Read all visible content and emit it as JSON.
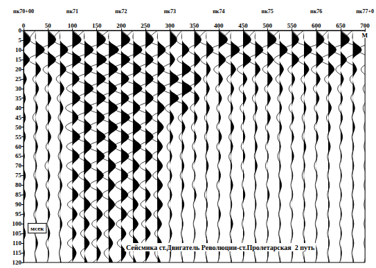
{
  "chart_data": {
    "type": "seismic",
    "title": "Сейсмика ст.Двигатель Революции-ст.Пролетарская  2 путь",
    "xlabel": "М",
    "ylabel": "мсек",
    "xlim": [
      0,
      700
    ],
    "xticks": [
      0,
      50,
      100,
      150,
      200,
      250,
      300,
      350,
      400,
      450,
      500,
      550,
      600,
      650,
      700
    ],
    "x2ticks": [
      {
        "value": 0,
        "label": "пк70+00"
      },
      {
        "value": 100,
        "label": "пк71"
      },
      {
        "value": 200,
        "label": "пк72"
      },
      {
        "value": 300,
        "label": "пк73"
      },
      {
        "value": 400,
        "label": "пк74"
      },
      {
        "value": 500,
        "label": "пк75"
      },
      {
        "value": 600,
        "label": "пк76"
      },
      {
        "value": 700,
        "label": "пк77+0"
      }
    ],
    "ylim": [
      0,
      120
    ],
    "yticks": [
      0,
      5,
      10,
      15,
      20,
      25,
      30,
      35,
      40,
      45,
      50,
      55,
      60,
      65,
      70,
      75,
      80,
      85,
      90,
      95,
      100,
      105,
      110,
      115,
      120
    ],
    "grid": false,
    "color": "#000000",
    "traces": {
      "x": [
        0,
        25,
        50,
        75,
        100,
        125,
        150,
        175,
        200,
        225,
        250,
        275,
        300,
        325,
        350,
        375,
        400,
        425,
        450,
        475,
        500,
        525,
        550,
        575,
        600,
        625,
        650,
        675,
        700
      ],
      "t": [
        0,
        5,
        10,
        15,
        20,
        25,
        30,
        35,
        40,
        45,
        50,
        55,
        60,
        65,
        70,
        75,
        80,
        85,
        90,
        95,
        100,
        105,
        110,
        115,
        120
      ],
      "amplitudes": [
        [
          0,
          0.7,
          -0.8,
          0.6,
          -0.4,
          0.3,
          -0.3,
          0.2,
          -0.2,
          0.2,
          -0.1,
          0.2,
          -0.2,
          0.1,
          -0.2,
          0.2,
          -0.1,
          0.2,
          -0.2,
          0.1,
          -0.1,
          0.2,
          -0.1,
          0.1,
          -0.1
        ],
        [
          0,
          -0.6,
          0.9,
          -0.7,
          0.5,
          -0.3,
          0.3,
          -0.2,
          0.2,
          -0.3,
          0.2,
          -0.2,
          0.2,
          -0.2,
          0.1,
          -0.2,
          0.2,
          -0.1,
          0.2,
          -0.2,
          0.1,
          -0.1,
          0.2,
          -0.1,
          0.1
        ],
        [
          0,
          0.8,
          -0.7,
          0.8,
          -0.5,
          0.4,
          -0.3,
          0.3,
          -0.2,
          0.3,
          -0.2,
          0.3,
          -0.2,
          0.2,
          -0.3,
          0.2,
          -0.2,
          0.2,
          -0.2,
          0.2,
          -0.1,
          0.2,
          -0.2,
          0.1,
          -0.1
        ],
        [
          0,
          -0.7,
          0.8,
          -0.6,
          0.6,
          -0.4,
          0.4,
          -0.3,
          0.3,
          -0.2,
          0.3,
          -0.2,
          0.2,
          -0.2,
          0.2,
          -0.2,
          0.2,
          -0.2,
          0.1,
          -0.2,
          0.2,
          -0.1,
          0.1,
          -0.1,
          0.1
        ],
        [
          0,
          0.9,
          -0.8,
          0.9,
          -0.8,
          0.7,
          -0.6,
          0.8,
          -0.7,
          0.6,
          -0.7,
          0.8,
          -0.6,
          0.7,
          -0.6,
          0.6,
          -0.5,
          0.6,
          -0.5,
          0.5,
          -0.5,
          0.4,
          -0.5,
          0.4,
          -0.4
        ],
        [
          0,
          -0.8,
          0.9,
          -0.9,
          0.8,
          -0.8,
          0.9,
          -0.7,
          0.8,
          -0.8,
          0.7,
          -0.8,
          0.7,
          -0.6,
          0.7,
          -0.6,
          0.6,
          -0.5,
          0.6,
          -0.5,
          0.5,
          -0.4,
          0.5,
          -0.4,
          0.3
        ],
        [
          0,
          0.9,
          -0.9,
          1.0,
          -0.9,
          0.9,
          -0.8,
          0.9,
          -0.9,
          0.8,
          -0.8,
          0.9,
          -0.8,
          0.8,
          -0.7,
          0.7,
          -0.7,
          0.6,
          -0.6,
          0.6,
          -0.5,
          0.5,
          -0.5,
          0.4,
          -0.4
        ],
        [
          0,
          -0.9,
          1.0,
          -0.9,
          0.9,
          -0.9,
          0.8,
          -0.9,
          0.9,
          -0.8,
          0.9,
          -0.7,
          0.8,
          -0.8,
          0.7,
          -0.7,
          0.6,
          -0.7,
          0.6,
          -0.5,
          0.6,
          -0.5,
          0.4,
          -0.5,
          0.4
        ],
        [
          0,
          0.9,
          -0.8,
          0.9,
          -0.9,
          0.8,
          -0.9,
          0.8,
          -0.8,
          0.9,
          -0.8,
          0.8,
          -0.7,
          0.8,
          -0.7,
          0.7,
          -0.6,
          0.7,
          -0.6,
          0.6,
          -0.5,
          0.5,
          -0.4,
          0.5,
          -0.4
        ],
        [
          0,
          -0.8,
          0.9,
          -0.8,
          0.8,
          -0.9,
          0.9,
          -0.8,
          0.7,
          -0.8,
          0.8,
          -0.7,
          0.8,
          -0.7,
          0.6,
          -0.7,
          0.6,
          -0.6,
          0.5,
          -0.6,
          0.5,
          -0.4,
          0.5,
          -0.4,
          0.3
        ],
        [
          0,
          0.8,
          -0.9,
          0.8,
          -0.8,
          0.8,
          -0.7,
          0.8,
          -0.8,
          0.7,
          -0.7,
          0.8,
          -0.6,
          0.7,
          -0.6,
          0.6,
          -0.6,
          0.5,
          -0.5,
          0.6,
          -0.4,
          0.5,
          -0.4,
          0.4,
          -0.3
        ],
        [
          0,
          -0.9,
          0.8,
          -0.8,
          0.7,
          -0.7,
          0.8,
          -0.6,
          0.7,
          -0.6,
          0.6,
          -0.7,
          0.5,
          -0.6,
          0.5,
          -0.5,
          0.5,
          -0.4,
          0.5,
          -0.4,
          0.4,
          -0.3,
          0.4,
          -0.3,
          0.3
        ],
        [
          0,
          0.7,
          -0.6,
          0.5,
          -0.8,
          0.9,
          -0.8,
          0.9,
          -0.5,
          0.4,
          -0.3,
          0.3,
          -0.3,
          0.2,
          -0.3,
          0.2,
          -0.2,
          0.2,
          -0.2,
          0.2,
          -0.1,
          0.2,
          -0.1,
          0.1,
          -0.1
        ],
        [
          0,
          -0.6,
          0.7,
          -0.5,
          0.9,
          -0.9,
          1.0,
          -0.8,
          0.6,
          -0.4,
          0.3,
          -0.3,
          0.2,
          -0.2,
          0.2,
          -0.2,
          0.2,
          -0.1,
          0.2,
          -0.1,
          0.1,
          -0.1,
          0.1,
          -0.1,
          0.1
        ],
        [
          0,
          0.7,
          -0.6,
          0.6,
          -0.5,
          0.7,
          -0.6,
          0.5,
          -0.4,
          0.3,
          -0.3,
          0.2,
          -0.2,
          0.2,
          -0.2,
          0.1,
          -0.2,
          0.2,
          -0.1,
          0.1,
          -0.1,
          0.1,
          -0.1,
          0.1,
          -0.1
        ],
        [
          0,
          -0.8,
          0.7,
          -0.6,
          0.4,
          -0.3,
          0.3,
          -0.2,
          0.3,
          -0.2,
          0.2,
          -0.2,
          0.2,
          -0.1,
          0.2,
          -0.1,
          0.1,
          -0.2,
          0.1,
          -0.1,
          0.1,
          -0.1,
          0.1,
          -0.1,
          0.1
        ],
        [
          0,
          0.9,
          -0.8,
          0.7,
          -0.5,
          0.4,
          -0.3,
          0.3,
          -0.2,
          0.2,
          -0.2,
          0.3,
          -0.2,
          0.2,
          -0.1,
          0.2,
          -0.2,
          0.1,
          -0.1,
          0.2,
          -0.1,
          0.1,
          -0.1,
          0.1,
          -0.1
        ],
        [
          0,
          -0.8,
          0.9,
          -0.6,
          0.5,
          -0.4,
          0.3,
          -0.3,
          0.2,
          -0.2,
          0.3,
          -0.2,
          0.2,
          -0.2,
          0.1,
          -0.1,
          0.2,
          -0.1,
          0.1,
          -0.1,
          0.2,
          -0.1,
          0.1,
          -0.1,
          0.1
        ],
        [
          0,
          0.8,
          -0.7,
          0.8,
          -0.6,
          0.4,
          -0.4,
          0.3,
          -0.3,
          0.2,
          -0.2,
          0.2,
          -0.2,
          0.2,
          -0.2,
          0.1,
          -0.1,
          0.2,
          -0.1,
          0.1,
          -0.1,
          0.1,
          -0.1,
          0.1,
          -0.1
        ],
        [
          0,
          -0.7,
          0.8,
          -0.7,
          0.5,
          -0.3,
          0.3,
          -0.3,
          0.2,
          -0.2,
          0.2,
          -0.1,
          0.2,
          -0.1,
          0.2,
          -0.1,
          0.1,
          -0.1,
          0.1,
          -0.1,
          0.1,
          -0.1,
          0.1,
          -0.1,
          0.1
        ],
        [
          0,
          0.9,
          -0.7,
          0.6,
          -0.5,
          0.5,
          -0.3,
          0.3,
          -0.2,
          0.3,
          -0.2,
          0.2,
          -0.2,
          0.1,
          -0.2,
          0.1,
          -0.1,
          0.2,
          -0.1,
          0.1,
          -0.1,
          0.1,
          -0.1,
          0.1,
          -0.1
        ],
        [
          0,
          -0.8,
          0.8,
          -0.6,
          0.4,
          -0.4,
          0.3,
          -0.2,
          0.2,
          -0.3,
          0.2,
          -0.2,
          0.1,
          -0.2,
          0.1,
          -0.1,
          0.2,
          -0.1,
          0.1,
          -0.1,
          0.1,
          -0.1,
          0.1,
          -0.1,
          0.1
        ],
        [
          0,
          0.7,
          -0.8,
          0.7,
          -0.4,
          0.3,
          -0.3,
          0.2,
          -0.3,
          0.2,
          -0.2,
          0.2,
          -0.1,
          0.2,
          -0.1,
          0.1,
          -0.1,
          0.1,
          -0.2,
          0.1,
          -0.1,
          0.1,
          -0.1,
          0.1,
          -0.1
        ],
        [
          0,
          -0.9,
          0.8,
          -0.6,
          0.5,
          -0.3,
          0.2,
          -0.3,
          0.2,
          -0.2,
          0.1,
          -0.2,
          0.2,
          -0.1,
          0.1,
          -0.2,
          0.1,
          -0.1,
          0.1,
          -0.1,
          0.1,
          -0.1,
          0.1,
          -0.1,
          0.1
        ],
        [
          0,
          0.8,
          -0.9,
          0.7,
          -0.5,
          0.4,
          -0.3,
          0.3,
          -0.2,
          0.2,
          -0.2,
          0.2,
          -0.1,
          0.1,
          -0.2,
          0.1,
          -0.1,
          0.1,
          -0.1,
          0.1,
          -0.1,
          0.1,
          -0.1,
          0.1,
          -0.1
        ],
        [
          0,
          -0.7,
          0.8,
          -0.8,
          0.6,
          -0.4,
          0.3,
          -0.2,
          0.3,
          -0.2,
          0.2,
          -0.1,
          0.2,
          -0.1,
          0.1,
          -0.1,
          0.1,
          -0.1,
          0.1,
          -0.1,
          0.1,
          -0.1,
          0.1,
          -0.1,
          0.1
        ],
        [
          0,
          0.9,
          -0.8,
          0.6,
          -0.5,
          0.3,
          -0.3,
          0.2,
          -0.2,
          0.2,
          -0.1,
          0.2,
          -0.1,
          0.1,
          -0.1,
          0.1,
          -0.1,
          0.1,
          -0.1,
          0.1,
          -0.1,
          0.1,
          -0.1,
          0.1,
          -0.1
        ],
        [
          0,
          -0.8,
          0.9,
          -0.7,
          0.4,
          -0.3,
          0.2,
          -0.2,
          0.2,
          -0.1,
          0.2,
          -0.1,
          0.1,
          -0.1,
          0.1,
          -0.1,
          0.1,
          -0.1,
          0.1,
          -0.1,
          0.1,
          -0.1,
          0.1,
          -0.1,
          0.1
        ],
        [
          0,
          0.8,
          -0.7,
          0.6,
          -0.4,
          0.3,
          -0.2,
          0.2,
          -0.2,
          0.1,
          -0.1,
          0.1,
          -0.1,
          0.1,
          -0.1,
          0.1,
          -0.1,
          0.1,
          -0.1,
          0.1,
          -0.1,
          0.1,
          -0.1,
          0.1,
          -0.1
        ]
      ]
    }
  }
}
